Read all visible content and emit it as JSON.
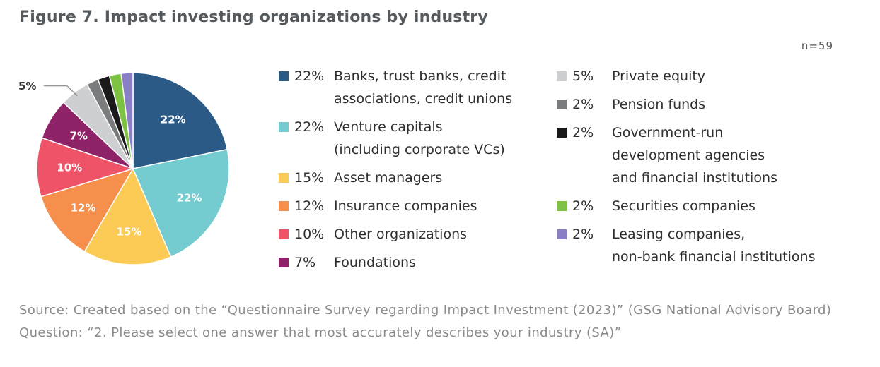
{
  "title": "Figure 7. Impact investing organizations by industry",
  "n_label": "n=59",
  "source": "Source: Created based on the “Questionnaire Survey regarding Impact Investment (2023)” (GSG National Advisory Board)  Question: “2. Please select one answer that most accurately describes your industry (SA)”",
  "chart_data": {
    "type": "pie",
    "start_angle_deg": 0,
    "direction": "clockwise",
    "slices": [
      {
        "label": "Banks, trust banks, credit\nassociations, credit unions",
        "value": 22,
        "pct_label": "22%",
        "slice_label": "22%",
        "color": "#2b5a87"
      },
      {
        "label": "Venture capitals\n(including corporate VCs)",
        "value": 22,
        "pct_label": "22%",
        "slice_label": "22%",
        "color": "#74ccd1"
      },
      {
        "label": "Asset managers",
        "value": 15,
        "pct_label": "15%",
        "slice_label": "15%",
        "color": "#fbcb55"
      },
      {
        "label": "Insurance companies",
        "value": 12,
        "pct_label": "12%",
        "slice_label": "12%",
        "color": "#f68f4b"
      },
      {
        "label": "Other organizations",
        "value": 10,
        "pct_label": "10%",
        "slice_label": "10%",
        "color": "#ee5367"
      },
      {
        "label": "Foundations",
        "value": 7,
        "pct_label": "7%",
        "slice_label": "7%",
        "color": "#8e2467"
      },
      {
        "label": "Private equity",
        "value": 5,
        "pct_label": "5%",
        "slice_label": "5%",
        "color": "#cdcfd1"
      },
      {
        "label": "Pension funds",
        "value": 2,
        "pct_label": "2%",
        "slice_label": "",
        "color": "#7a7c7e"
      },
      {
        "label": "Government-run\ndevelopment agencies\nand financial institutions",
        "value": 2,
        "pct_label": "2%",
        "slice_label": "",
        "color": "#1a1a1a"
      },
      {
        "label": "Securities companies",
        "value": 2,
        "pct_label": "2%",
        "slice_label": "",
        "color": "#7dc242"
      },
      {
        "label": "Leasing companies,\nnon-bank financial institutions",
        "value": 2,
        "pct_label": "2%",
        "slice_label": "",
        "color": "#8a7fc4"
      }
    ],
    "callout": {
      "label": "5%",
      "slice_index": 6
    }
  }
}
